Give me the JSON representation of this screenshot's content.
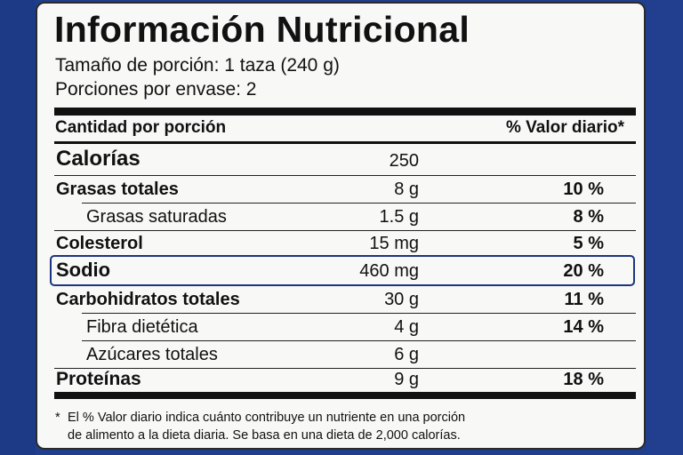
{
  "title": "Información Nutricional",
  "serving_size": "Tamaño de porción: 1 taza (240 g)",
  "servings_per_container": "Porciones por envase: 2",
  "header": {
    "left": "Cantidad por porción",
    "right": "% Valor diario*"
  },
  "rows": [
    {
      "name": "Calorías",
      "amount": "250",
      "dv": ""
    },
    {
      "name": "Grasas totales",
      "amount": "8 g",
      "dv": "10 %"
    },
    {
      "name": "Grasas saturadas",
      "amount": "1.5 g",
      "dv": "8 %"
    },
    {
      "name": "Colesterol",
      "amount": "15 mg",
      "dv": "5 %"
    },
    {
      "name": "Sodio",
      "amount": "460 mg",
      "dv": "20 %"
    },
    {
      "name": "Carbohidratos totales",
      "amount": "30 g",
      "dv": "11 %"
    },
    {
      "name": "Fibra dietética",
      "amount": "4 g",
      "dv": "14 %"
    },
    {
      "name": "Azúcares totales",
      "amount": "6 g",
      "dv": ""
    },
    {
      "name": "Proteínas",
      "amount": "9 g",
      "dv": "18 %"
    }
  ],
  "footnote": {
    "star": "*",
    "line1": "El % Valor diario indica cuánto contribuye un nutriente en una porción",
    "line2": "de alimento a la dieta diaria. Se basa en una dieta de 2,000 calorías."
  },
  "colors": {
    "background": "#1f3f8c",
    "label": "#f8f8f6",
    "highlight": "#1a3580"
  }
}
